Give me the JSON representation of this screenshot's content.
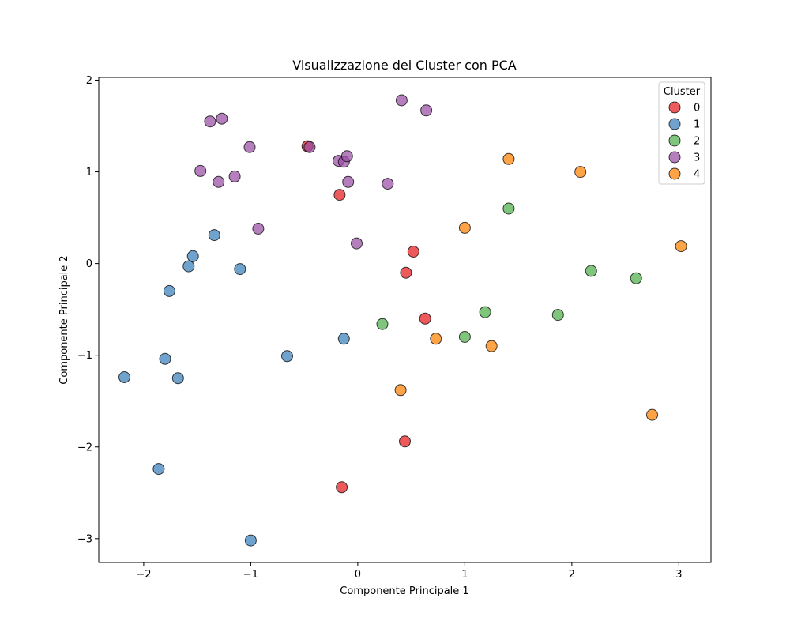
{
  "chart_data": {
    "type": "scatter",
    "title": "Visualizzazione dei Cluster con PCA",
    "xlabel": "Componente Principale 1",
    "ylabel": "Componente Principale 2",
    "xlim": [
      -2.42,
      3.3
    ],
    "ylim": [
      -3.26,
      2.03
    ],
    "xticks": [
      -2,
      -1,
      0,
      1,
      2,
      3
    ],
    "yticks": [
      -3,
      -2,
      -1,
      0,
      1,
      2
    ],
    "grid": false,
    "legend": {
      "title": "Cluster",
      "placement": "top-right"
    },
    "colors": {
      "0": "#e41a1c",
      "1": "#377eb8",
      "2": "#4daf4a",
      "3": "#984ea3",
      "4": "#ff7f00"
    },
    "series": [
      {
        "name": "0",
        "points": [
          [
            -0.47,
            1.28
          ],
          [
            -0.17,
            0.75
          ],
          [
            0.52,
            0.13
          ],
          [
            0.45,
            -0.1
          ],
          [
            0.63,
            -0.6
          ],
          [
            0.44,
            -1.94
          ],
          [
            -0.15,
            -2.44
          ]
        ]
      },
      {
        "name": "1",
        "points": [
          [
            -1.34,
            0.31
          ],
          [
            -1.54,
            0.08
          ],
          [
            -1.58,
            -0.03
          ],
          [
            -1.1,
            -0.06
          ],
          [
            -1.76,
            -0.3
          ],
          [
            -0.66,
            -1.01
          ],
          [
            -0.13,
            -0.82
          ],
          [
            -1.8,
            -1.04
          ],
          [
            -1.68,
            -1.25
          ],
          [
            -2.18,
            -1.24
          ],
          [
            -1.86,
            -2.24
          ],
          [
            -1.0,
            -3.02
          ]
        ]
      },
      {
        "name": "2",
        "points": [
          [
            1.41,
            0.6
          ],
          [
            2.18,
            -0.08
          ],
          [
            2.6,
            -0.16
          ],
          [
            1.19,
            -0.53
          ],
          [
            1.87,
            -0.56
          ],
          [
            0.23,
            -0.66
          ],
          [
            1.0,
            -0.8
          ]
        ]
      },
      {
        "name": "3",
        "points": [
          [
            -1.27,
            1.58
          ],
          [
            -1.38,
            1.55
          ],
          [
            -1.01,
            1.27
          ],
          [
            -0.45,
            1.27
          ],
          [
            -1.47,
            1.01
          ],
          [
            -1.15,
            0.95
          ],
          [
            -1.3,
            0.89
          ],
          [
            -0.18,
            1.12
          ],
          [
            -0.13,
            1.11
          ],
          [
            -0.1,
            1.17
          ],
          [
            -0.09,
            0.89
          ],
          [
            0.28,
            0.87
          ],
          [
            0.41,
            1.78
          ],
          [
            0.64,
            1.67
          ],
          [
            -0.93,
            0.38
          ],
          [
            -0.01,
            0.22
          ]
        ]
      },
      {
        "name": "4",
        "points": [
          [
            1.41,
            1.14
          ],
          [
            2.08,
            1.0
          ],
          [
            1.0,
            0.39
          ],
          [
            3.02,
            0.19
          ],
          [
            0.73,
            -0.82
          ],
          [
            1.25,
            -0.9
          ],
          [
            0.4,
            -1.38
          ],
          [
            2.75,
            -1.65
          ]
        ]
      }
    ]
  }
}
